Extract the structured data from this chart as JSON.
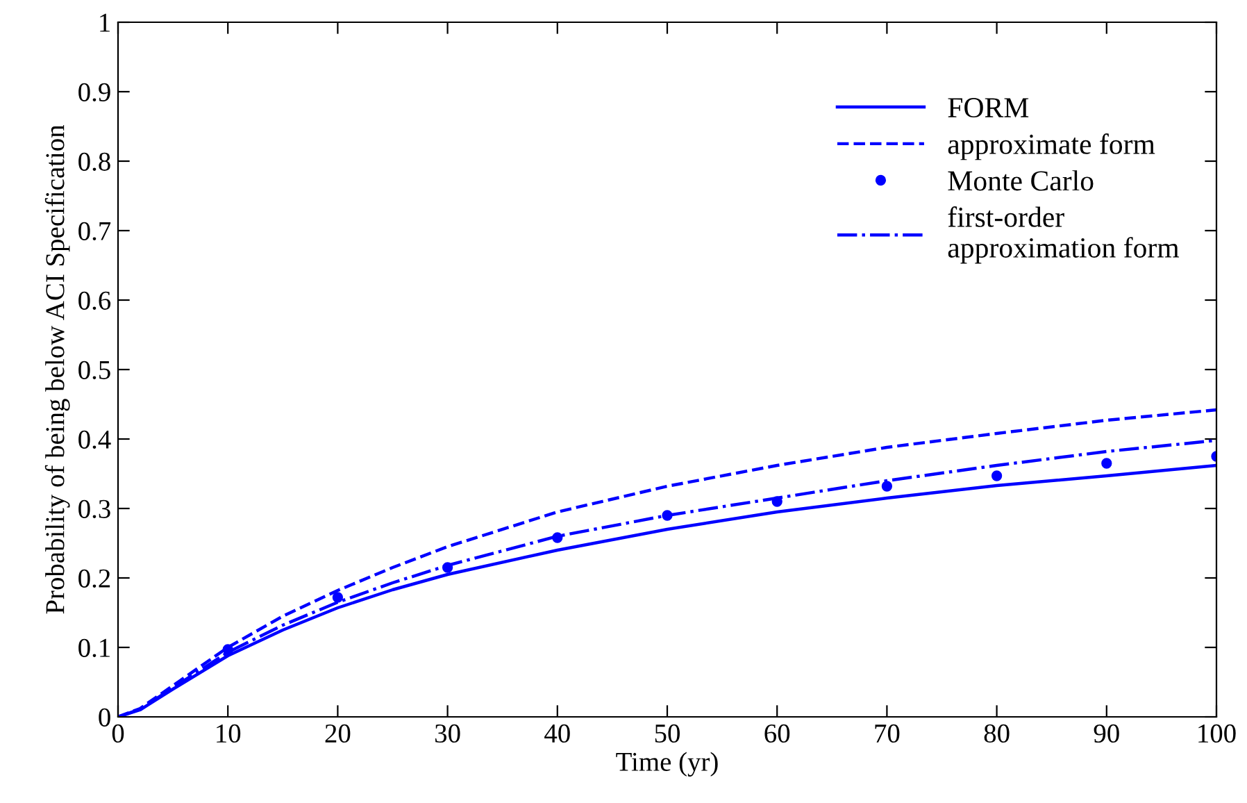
{
  "chart_data": {
    "type": "line",
    "xlabel": "Time (yr)",
    "ylabel": "Probability of being below ACI Specification",
    "xlim": [
      0,
      100
    ],
    "xticks": [
      0,
      10,
      20,
      30,
      40,
      50,
      60,
      70,
      80,
      90,
      100
    ],
    "ylim": [
      0,
      1
    ],
    "yticks": [
      0,
      0.1,
      0.2,
      0.3,
      0.4,
      0.5,
      0.6,
      0.7,
      0.8,
      0.9,
      1
    ],
    "grid": false,
    "legend": "top right",
    "series": [
      {
        "name": "FORM",
        "color": "#0000ff",
        "line_style": "solid",
        "marker": "none",
        "x": [
          0,
          2,
          5,
          10,
          15,
          20,
          25,
          30,
          40,
          50,
          60,
          70,
          80,
          90,
          100
        ],
        "values": [
          0,
          0.01,
          0.04,
          0.088,
          0.125,
          0.157,
          0.183,
          0.205,
          0.24,
          0.27,
          0.295,
          0.315,
          0.333,
          0.347,
          0.362
        ]
      },
      {
        "name": "approximate form",
        "color": "#0000ff",
        "line_style": "dashed",
        "marker": "none",
        "x": [
          0,
          2,
          5,
          10,
          15,
          20,
          25,
          30,
          40,
          50,
          60,
          70,
          80,
          90,
          100
        ],
        "values": [
          0,
          0.012,
          0.045,
          0.1,
          0.145,
          0.182,
          0.215,
          0.245,
          0.295,
          0.332,
          0.362,
          0.388,
          0.408,
          0.427,
          0.442
        ]
      },
      {
        "name": "Monte Carlo",
        "color": "#0000ff",
        "type": "scatter",
        "marker": "circle",
        "x": [
          10,
          20,
          30,
          40,
          50,
          60,
          70,
          80,
          90,
          100
        ],
        "values": [
          0.097,
          0.172,
          0.215,
          0.258,
          0.29,
          0.31,
          0.332,
          0.347,
          0.365,
          0.375
        ]
      },
      {
        "name": "first-order\napproximation form",
        "color": "#0000ff",
        "line_style": "dashdot",
        "marker": "none",
        "x": [
          0,
          2,
          5,
          10,
          15,
          20,
          25,
          30,
          40,
          50,
          60,
          70,
          80,
          90,
          100
        ],
        "values": [
          0,
          0.011,
          0.042,
          0.093,
          0.132,
          0.165,
          0.193,
          0.218,
          0.26,
          0.29,
          0.315,
          0.34,
          0.362,
          0.382,
          0.398
        ]
      }
    ]
  }
}
